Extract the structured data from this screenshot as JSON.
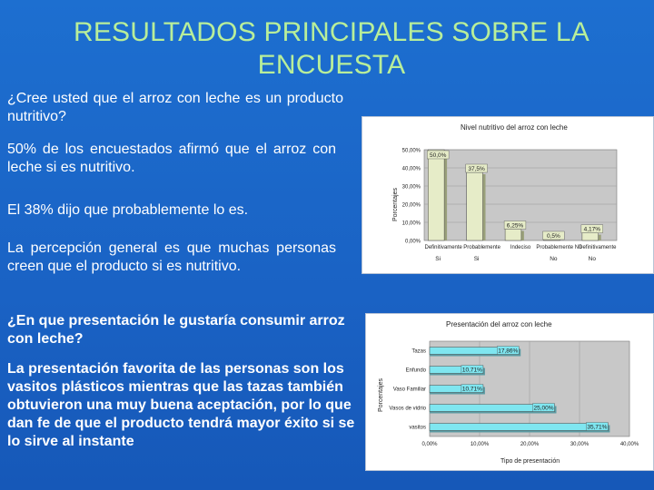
{
  "slide": {
    "title_line1": "RESULTADOS PRINCIPALES  SOBRE LA",
    "title_line2": "ENCUESTA",
    "q1": "¿Cree usted que el arroz con leche es un producto nutritivo?",
    "p1": "50% de los encuestados afirmó que el arroz con leche si es nutritivo.",
    "p2": "El 38% dijo que probablemente lo es.",
    "p3": "La percepción general es que muchas personas creen que el producto si es nutritivo.",
    "q2": "¿En que presentación le gustaría consumir arroz con leche?",
    "p4": "La presentación favorita de las personas son los vasitos plásticos mientras que las tazas también obtuvieron una muy buena aceptación, por lo que dan fe de que el producto tendrá mayor éxito si se lo sirve al instante"
  },
  "chart_data": [
    {
      "type": "bar",
      "title": "Nivel nutritivo del arroz con leche",
      "ylabel": "Porcentajes",
      "xlabel": "",
      "categories": [
        "Definitivamente",
        "Probablemente",
        "Indeciso",
        "Probablemente No",
        "Definitivamente"
      ],
      "groups": [
        "Si",
        "Si",
        "",
        "No",
        "No"
      ],
      "values": [
        50.0,
        37.5,
        6.25,
        0.5,
        4.17
      ],
      "labels": [
        "50,0%",
        "37,5%",
        "6,25%",
        "0,5%",
        "4,17%"
      ],
      "yticks": [
        "0,00%",
        "10,00%",
        "20,00%",
        "30,00%",
        "40,00%",
        "50,00%"
      ],
      "ylim": [
        0,
        50
      ],
      "color": "#e6ecc8"
    },
    {
      "type": "bar",
      "orientation": "horizontal",
      "title": "Presentación del arroz con leche",
      "xlabel": "Tipo de presentación",
      "ylabel": "Porcentajes",
      "categories": [
        "Tazas",
        "Enfundo",
        "Vaso Familiar",
        "Vasos de vidrio",
        "vasitos"
      ],
      "values": [
        17.86,
        10.71,
        10.71,
        25.0,
        35.71
      ],
      "labels": [
        "17,86%",
        "10,71%",
        "10,71%",
        "25,00%",
        "35,71%"
      ],
      "xticks": [
        "0,00%",
        "10,00%",
        "20,00%",
        "30,00%",
        "40,00%"
      ],
      "xlim": [
        0,
        40
      ],
      "color": "#7fe6f0"
    }
  ]
}
